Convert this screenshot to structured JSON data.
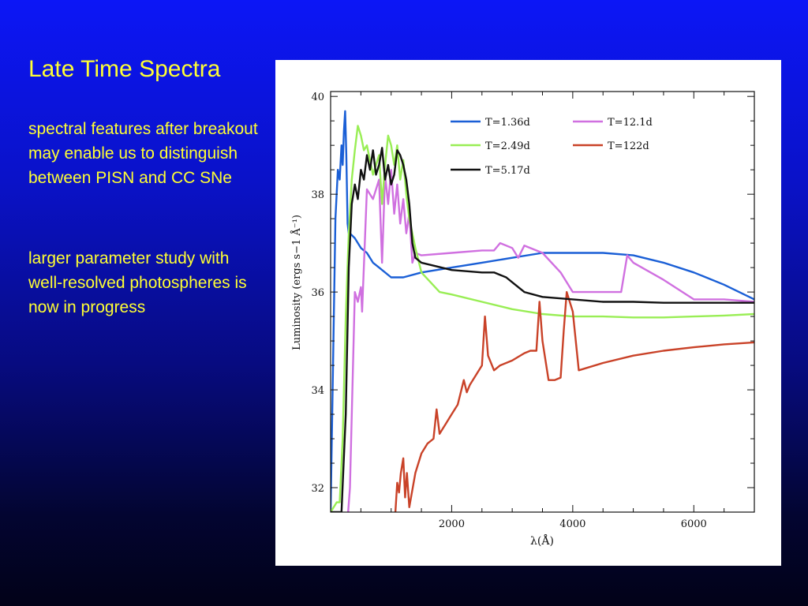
{
  "slide": {
    "title": "Late Time Spectra",
    "bullets": [
      "spectral features after breakout may enable us to distinguish between PISN and CC SNe",
      "larger parameter study with well-resolved photospheres is now in progress"
    ]
  },
  "colors": {
    "background_top": "#0c16f6",
    "background_bottom": "#020218",
    "text": "#ffff33"
  },
  "chart_data": {
    "type": "line",
    "xlabel": "λ(Å)",
    "ylabel": "Luminosity (ergs s−1 Å⁻¹)",
    "xlim": [
      0,
      7000
    ],
    "ylim": [
      31.5,
      40.1
    ],
    "xticks": [
      2000,
      4000,
      6000
    ],
    "yticks": [
      32,
      34,
      36,
      38,
      40
    ],
    "grid": false,
    "legend_position": "top-right",
    "series": [
      {
        "name": "T=1.36d",
        "color": "#1a5fd6",
        "x": [
          0,
          80,
          120,
          150,
          180,
          200,
          220,
          240,
          260,
          280,
          300,
          320,
          400,
          500,
          600,
          700,
          800,
          1000,
          1200,
          1500,
          2000,
          2500,
          3000,
          3500,
          4000,
          4500,
          5000,
          5500,
          6000,
          6500,
          7000
        ],
        "y": [
          31.5,
          37.5,
          38.5,
          38.3,
          39.0,
          38.6,
          39.3,
          39.7,
          38.8,
          37.4,
          37.2,
          37.2,
          37.1,
          36.9,
          36.8,
          36.6,
          36.5,
          36.3,
          36.3,
          36.4,
          36.5,
          36.6,
          36.7,
          36.8,
          36.8,
          36.8,
          36.75,
          36.6,
          36.4,
          36.15,
          35.85
        ]
      },
      {
        "name": "T=12.1d",
        "color": "#d070e0",
        "x": [
          290,
          320,
          360,
          400,
          450,
          500,
          520,
          600,
          700,
          800,
          850,
          900,
          950,
          1000,
          1050,
          1100,
          1150,
          1200,
          1250,
          1300,
          1350,
          1400,
          1500,
          2000,
          2500,
          2700,
          2800,
          3000,
          3100,
          3200,
          3500,
          3800,
          4000,
          4500,
          4800,
          4900,
          5000,
          5500,
          6000,
          6500,
          7000
        ],
        "y": [
          31.5,
          32.0,
          34.0,
          36.0,
          35.8,
          36.1,
          35.6,
          38.1,
          37.9,
          38.3,
          36.6,
          38.4,
          37.8,
          38.5,
          37.6,
          38.2,
          37.4,
          37.9,
          37.2,
          37.6,
          36.6,
          36.8,
          36.75,
          36.8,
          36.85,
          36.85,
          37.0,
          36.9,
          36.7,
          36.95,
          36.8,
          36.4,
          36.0,
          36.0,
          36.0,
          36.75,
          36.6,
          36.25,
          35.85,
          35.85,
          35.8
        ]
      },
      {
        "name": "T=2.49d",
        "color": "#99ee55",
        "x": [
          0,
          100,
          150,
          200,
          250,
          300,
          350,
          400,
          450,
          500,
          550,
          600,
          700,
          800,
          850,
          900,
          950,
          1000,
          1050,
          1100,
          1150,
          1200,
          1250,
          1300,
          1350,
          1400,
          1500,
          1800,
          2000,
          2500,
          3000,
          3500,
          4000,
          4500,
          5000,
          5500,
          6000,
          6500,
          7000
        ],
        "y": [
          31.5,
          31.7,
          31.7,
          33.0,
          35.5,
          37.2,
          38.3,
          38.9,
          39.4,
          39.2,
          38.9,
          39.0,
          38.4,
          38.8,
          37.8,
          38.6,
          39.2,
          39.0,
          38.6,
          39.0,
          38.3,
          38.7,
          38.0,
          37.5,
          37.2,
          36.9,
          36.4,
          36.0,
          35.95,
          35.8,
          35.65,
          35.55,
          35.5,
          35.5,
          35.48,
          35.48,
          35.5,
          35.52,
          35.55
        ]
      },
      {
        "name": "T=122d",
        "color": "#c94228",
        "x": [
          1070,
          1100,
          1130,
          1160,
          1200,
          1230,
          1260,
          1300,
          1400,
          1500,
          1600,
          1700,
          1750,
          1800,
          1850,
          1900,
          2000,
          2100,
          2200,
          2250,
          2300,
          2400,
          2500,
          2550,
          2600,
          2700,
          2800,
          3000,
          3200,
          3300,
          3400,
          3450,
          3500,
          3600,
          3700,
          3800,
          3850,
          3900,
          4000,
          4100,
          4500,
          5000,
          5500,
          6000,
          6500,
          7000
        ],
        "y": [
          31.5,
          32.1,
          31.9,
          32.3,
          32.6,
          31.8,
          32.3,
          31.6,
          32.3,
          32.7,
          32.9,
          33.0,
          33.6,
          33.1,
          33.2,
          33.3,
          33.5,
          33.7,
          34.2,
          33.95,
          34.1,
          34.3,
          34.5,
          35.5,
          34.7,
          34.4,
          34.5,
          34.6,
          34.75,
          34.8,
          34.8,
          35.8,
          35.0,
          34.2,
          34.2,
          34.25,
          35.2,
          36.0,
          35.6,
          34.4,
          34.55,
          34.7,
          34.8,
          34.87,
          34.93,
          34.97
        ]
      },
      {
        "name": "T=5.17d",
        "color": "#111111",
        "x": [
          0,
          180,
          250,
          300,
          350,
          400,
          450,
          500,
          550,
          600,
          650,
          700,
          750,
          800,
          850,
          900,
          950,
          1000,
          1050,
          1100,
          1150,
          1200,
          1250,
          1300,
          1350,
          1400,
          1500,
          2000,
          2500,
          2700,
          2900,
          3000,
          3200,
          3500,
          4000,
          4500,
          5000,
          5500,
          6000,
          6500,
          7000
        ],
        "y": [
          31.5,
          31.5,
          33.5,
          36.5,
          37.8,
          38.2,
          37.9,
          38.5,
          38.3,
          38.8,
          38.5,
          38.9,
          38.4,
          38.6,
          38.95,
          38.3,
          38.6,
          38.2,
          38.4,
          38.9,
          38.8,
          38.6,
          38.3,
          37.8,
          37.0,
          36.7,
          36.6,
          36.45,
          36.4,
          36.4,
          36.3,
          36.2,
          36.0,
          35.9,
          35.85,
          35.8,
          35.8,
          35.78,
          35.78,
          35.78,
          35.78
        ]
      }
    ]
  }
}
